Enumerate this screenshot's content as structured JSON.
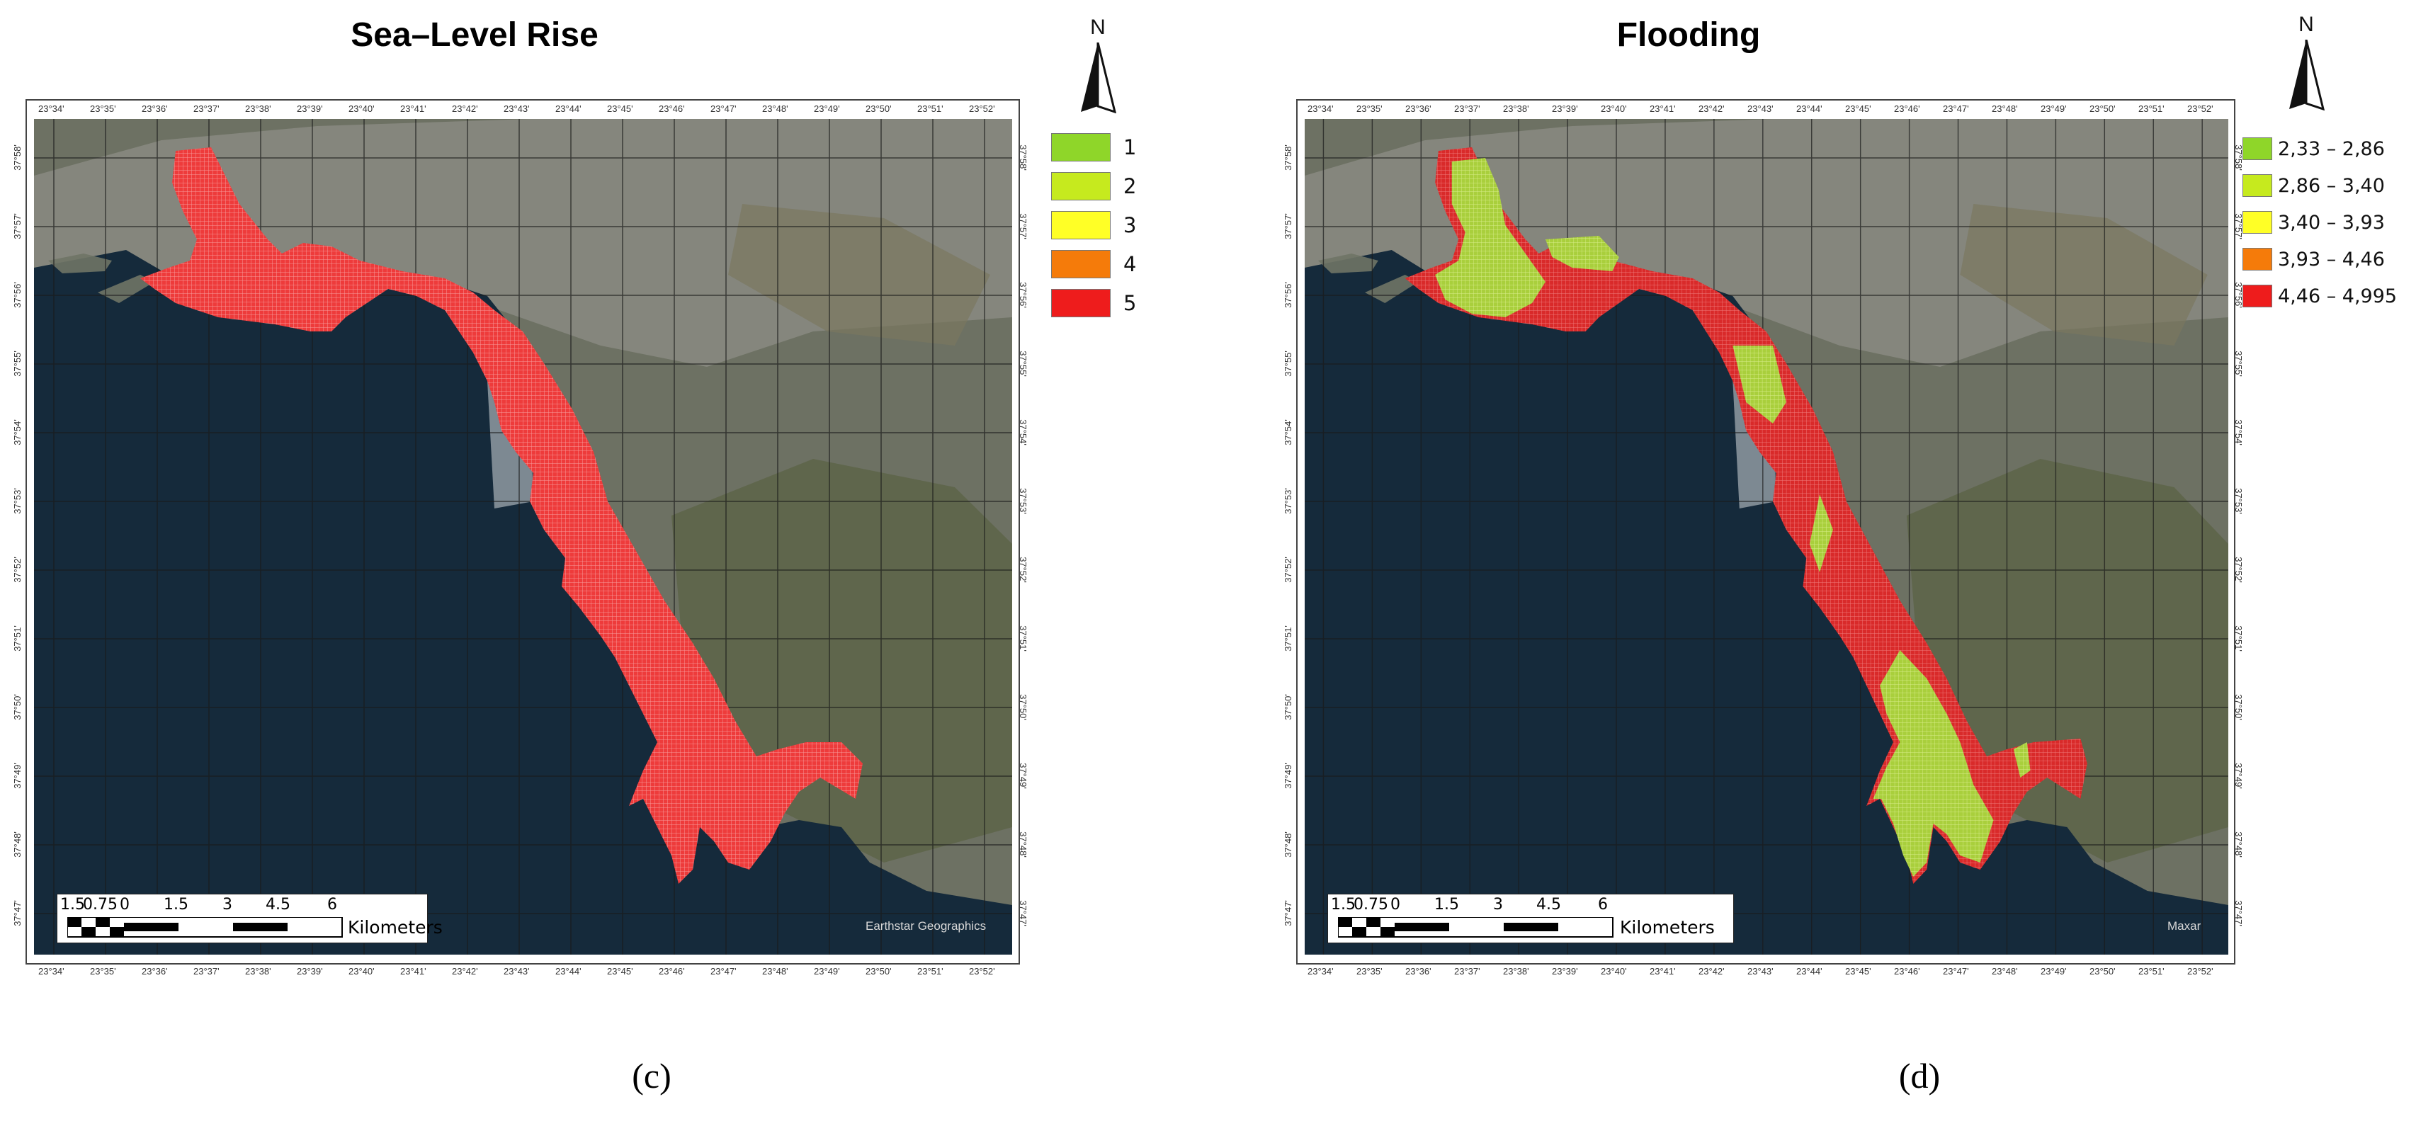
{
  "panels": [
    {
      "id": "c",
      "title": "Sea–Level Rise",
      "caption": "(c)",
      "north_label": "N",
      "credit": "Earthstar Geographics",
      "scale": {
        "labels": [
          "1.5",
          "0.75",
          "0",
          "1.5",
          "3",
          "4.5",
          "6"
        ],
        "units": "Kilometers"
      },
      "legend": [
        {
          "label": "1",
          "color": "#8fd629"
        },
        {
          "label": "2",
          "color": "#c6ea1e"
        },
        {
          "label": "3",
          "color": "#ffff26"
        },
        {
          "label": "4",
          "color": "#f57b0a"
        },
        {
          "label": "5",
          "color": "#ee1c1c"
        }
      ]
    },
    {
      "id": "d",
      "title": "Flooding",
      "caption": "(d)",
      "north_label": "N",
      "credit": "Maxar",
      "scale": {
        "labels": [
          "1.5",
          "0.75",
          "0",
          "1.5",
          "3",
          "4.5",
          "6"
        ],
        "units": "Kilometers"
      },
      "legend": [
        {
          "label": "2,33 – 2,86",
          "color": "#8fd629"
        },
        {
          "label": "2,86 – 3,40",
          "color": "#c6ea1e"
        },
        {
          "label": "3,40 – 3,93",
          "color": "#ffff26"
        },
        {
          "label": "3,93 – 4,46",
          "color": "#f57b0a"
        },
        {
          "label": "4,46 – 4,995",
          "color": "#ee1c1c"
        }
      ]
    }
  ],
  "longitude_ticks": [
    "23°34'",
    "23°35'",
    "23°36'",
    "23°37'",
    "23°38'",
    "23°39'",
    "23°40'",
    "23°41'",
    "23°42'",
    "23°43'",
    "23°44'",
    "23°45'",
    "23°46'",
    "23°47'",
    "23°48'",
    "23°49'",
    "23°50'",
    "23°51'",
    "23°52'"
  ],
  "latitude_ticks": [
    "37°58'",
    "37°57'",
    "37°56'",
    "37°55'",
    "37°54'",
    "37°53'",
    "37°52'",
    "37°51'",
    "37°50'",
    "37°49'",
    "37°48'",
    "37°47'"
  ],
  "colors": {
    "sea": "#152a3b",
    "land": "#6d7163",
    "urban": "#8d8d85",
    "hills": "#5d6448"
  }
}
